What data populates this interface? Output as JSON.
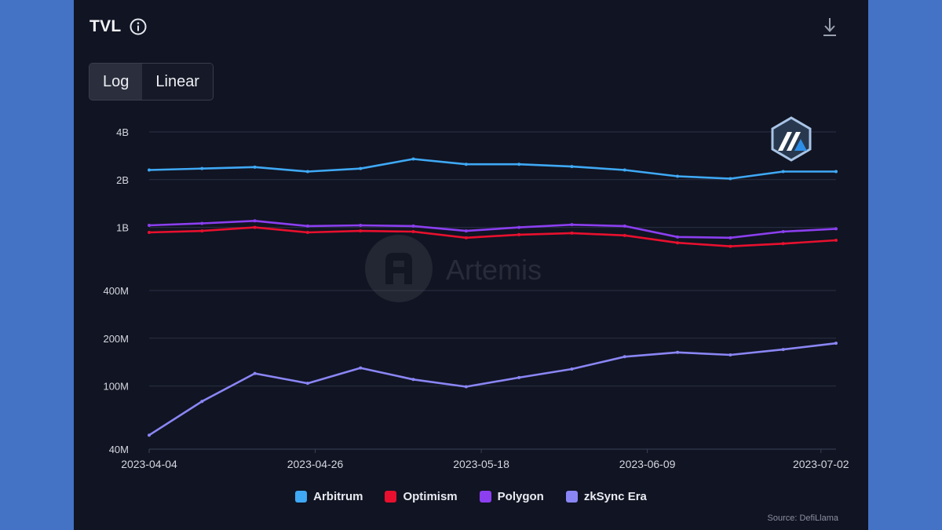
{
  "header": {
    "title": "TVL",
    "info_icon": "info-icon",
    "download_icon": "download-icon"
  },
  "scale_toggle": {
    "options": [
      "Log",
      "Linear"
    ],
    "selected": "Log"
  },
  "watermark": {
    "text": "Artemis",
    "logo_icon": "artemis-logo-icon"
  },
  "badge": {
    "icon": "arbitrum-logo-icon"
  },
  "source": "Source: DefiLlama",
  "chart_data": {
    "type": "line",
    "title": "TVL",
    "scale": "log",
    "ylim": [
      40000000,
      4000000000
    ],
    "y_ticks": [
      {
        "value": 40000000,
        "label": "40M"
      },
      {
        "value": 100000000,
        "label": "100M"
      },
      {
        "value": 200000000,
        "label": "200M"
      },
      {
        "value": 400000000,
        "label": "400M"
      },
      {
        "value": 1000000000,
        "label": "1B"
      },
      {
        "value": 2000000000,
        "label": "2B"
      },
      {
        "value": 4000000000,
        "label": "4B"
      }
    ],
    "x_range": [
      "2023-04-04",
      "2023-07-04"
    ],
    "x_ticks": [
      "2023-04-04",
      "2023-04-26",
      "2023-05-18",
      "2023-06-09",
      "2023-07-02"
    ],
    "grid": true,
    "legend_position": "bottom",
    "x": [
      "2023-04-04",
      "2023-04-11",
      "2023-04-18",
      "2023-04-25",
      "2023-05-02",
      "2023-05-09",
      "2023-05-16",
      "2023-05-23",
      "2023-05-30",
      "2023-06-06",
      "2023-06-13",
      "2023-06-20",
      "2023-06-27",
      "2023-07-04"
    ],
    "series": [
      {
        "name": "Arbitrum",
        "color": "#3fa9f5",
        "values": [
          2300000000,
          2350000000,
          2400000000,
          2250000000,
          2350000000,
          2700000000,
          2500000000,
          2500000000,
          2420000000,
          2300000000,
          2100000000,
          2030000000,
          2250000000,
          2250000000
        ]
      },
      {
        "name": "Optimism",
        "color": "#e8102e",
        "values": [
          930000000,
          950000000,
          1000000000,
          930000000,
          950000000,
          940000000,
          860000000,
          900000000,
          920000000,
          890000000,
          800000000,
          760000000,
          790000000,
          830000000
        ]
      },
      {
        "name": "Polygon",
        "color": "#8b3ff0",
        "values": [
          1030000000,
          1060000000,
          1100000000,
          1020000000,
          1030000000,
          1020000000,
          950000000,
          1000000000,
          1040000000,
          1020000000,
          870000000,
          860000000,
          940000000,
          980000000
        ]
      },
      {
        "name": "zkSync Era",
        "color": "#8a86f5",
        "values": [
          49000000,
          80000000,
          120000000,
          104000000,
          130000000,
          110000000,
          99000000,
          113000000,
          128000000,
          153000000,
          163000000,
          157000000,
          170000000,
          186000000
        ]
      }
    ]
  }
}
